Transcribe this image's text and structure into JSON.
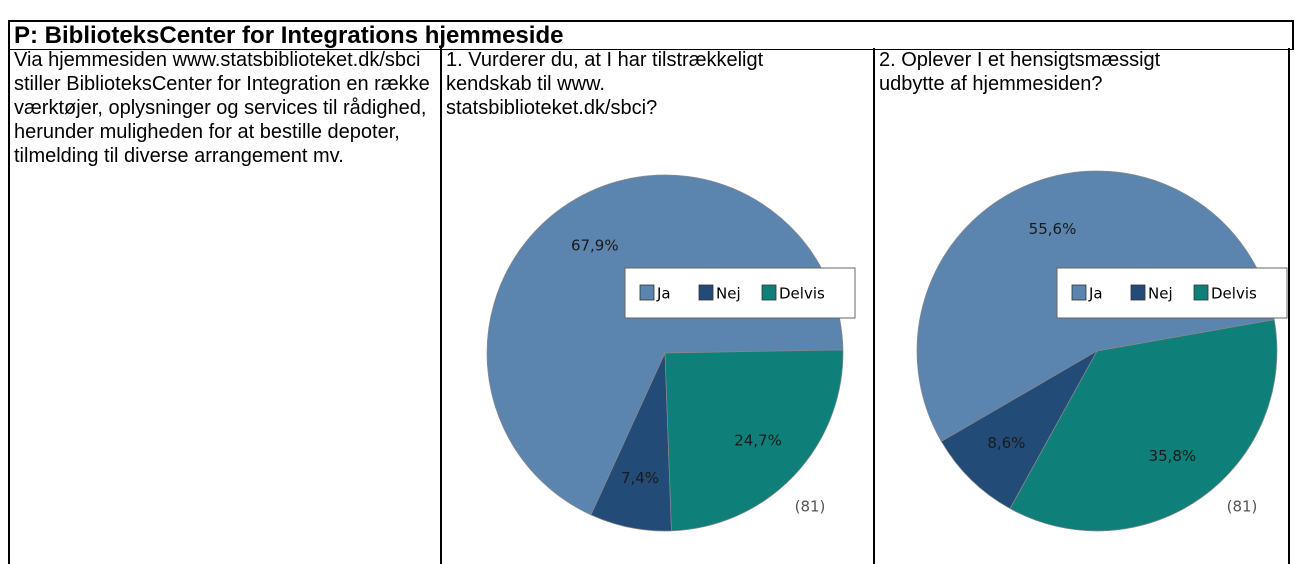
{
  "header": {
    "title": "P: BiblioteksCenter for Integrations hjemmeside"
  },
  "description": "Via hjemmesiden www.statsbiblioteket.dk/sbci stiller BiblioteksCenter for Integration en række værktøjer, oplysninger og services til rådighed, herunder muligheden for at bestille depoter, tilmelding til diverse arrangement mv.",
  "chart_data": [
    {
      "type": "pie",
      "title": "1. Vurderer du, at I har tilstrækkeligt kendskab til www. statsbiblioteket.dk/sbci?",
      "categories": [
        "Ja",
        "Nej",
        "Delvis"
      ],
      "values": [
        67.9,
        7.4,
        24.7
      ],
      "value_labels": [
        "67,9%",
        "7,4%",
        "24,7%"
      ],
      "colors": [
        "#5b84ae",
        "#224b78",
        "#0f7f7a"
      ],
      "annotation": "(81)",
      "legend": "right"
    },
    {
      "type": "pie",
      "title": "2. Oplever I et hensigtsmæssigt udbytte af hjemmesiden?",
      "categories": [
        "Ja",
        "Nej",
        "Delvis"
      ],
      "values": [
        55.6,
        8.6,
        35.8
      ],
      "value_labels": [
        "55,6%",
        "8,6%",
        "35,8%"
      ],
      "colors": [
        "#5b84ae",
        "#224b78",
        "#0f7f7a"
      ],
      "annotation": "(81)",
      "legend": "right"
    }
  ]
}
